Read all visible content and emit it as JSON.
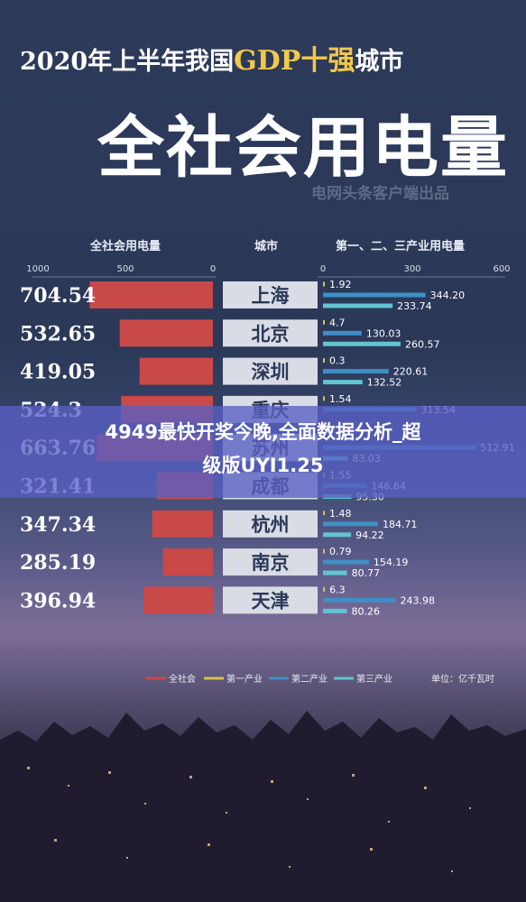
{
  "header": {
    "title_prefix": "2020年上半年我国",
    "title_gdp": "GDP十强",
    "title_suffix": "城市",
    "main_title": "全社会用电量",
    "source": "电网头条客户端出品"
  },
  "overlay": {
    "line1": "4949最快开奖今晚,全面数据分析_超",
    "line2": "级版UYI1.25"
  },
  "chart_data": {
    "type": "bar",
    "columns": {
      "left": "全社会用电量",
      "middle": "城市",
      "right": "第一、二、三产业用电量"
    },
    "left_axis": {
      "ticks": [
        "1000",
        "500",
        "0"
      ],
      "range": [
        1000,
        0
      ]
    },
    "right_axis": {
      "ticks": [
        "0",
        "300",
        "600"
      ],
      "range": [
        0,
        600
      ]
    },
    "unit": "单位：亿千瓦时",
    "categories": [
      "上海",
      "北京",
      "深圳",
      "重庆",
      "苏州",
      "成都",
      "杭州",
      "南京",
      "天津"
    ],
    "totals": [
      704.54,
      532.65,
      419.05,
      524.3,
      663.76,
      321.41,
      347.34,
      285.19,
      396.94
    ],
    "total_labels": [
      "704.54",
      "532.65",
      "419.05",
      "524.3",
      "663.76",
      "321.41",
      "347.34",
      "285.19",
      "396.94"
    ],
    "series": [
      {
        "name": "第一产业",
        "color": "#d9c24a",
        "values": [
          1.92,
          4.7,
          0.3,
          1.54,
          null,
          1.55,
          1.48,
          0.79,
          6.3
        ],
        "labels": [
          "1.92",
          "4.7",
          "0.3",
          "1.54",
          "",
          "1.55",
          "1.48",
          "0.79",
          "6.3"
        ]
      },
      {
        "name": "第二产业",
        "color": "#3f8fc4",
        "values": [
          344.2,
          130.03,
          220.61,
          313.54,
          512.91,
          146.64,
          184.71,
          154.19,
          243.98
        ],
        "labels": [
          "344.20",
          "130.03",
          "220.61",
          "313.54",
          "512.91",
          "146.64",
          "184.71",
          "154.19",
          "243.98"
        ]
      },
      {
        "name": "第三产业",
        "color": "#62c4d2",
        "values": [
          233.74,
          260.57,
          132.52,
          null,
          83.03,
          95.3,
          94.22,
          80.77,
          80.26
        ],
        "labels": [
          "233.74",
          "260.57",
          "132.52",
          "",
          "83.03",
          "95.30",
          "94.22",
          "80.77",
          "80.26"
        ]
      }
    ],
    "legend": {
      "items": [
        "全社会",
        "第一产业",
        "第二产业",
        "第三产业"
      ],
      "colors": [
        "#c94848",
        "#d9c24a",
        "#3f8fc4",
        "#62c4d2"
      ],
      "placement": "bottom"
    }
  }
}
